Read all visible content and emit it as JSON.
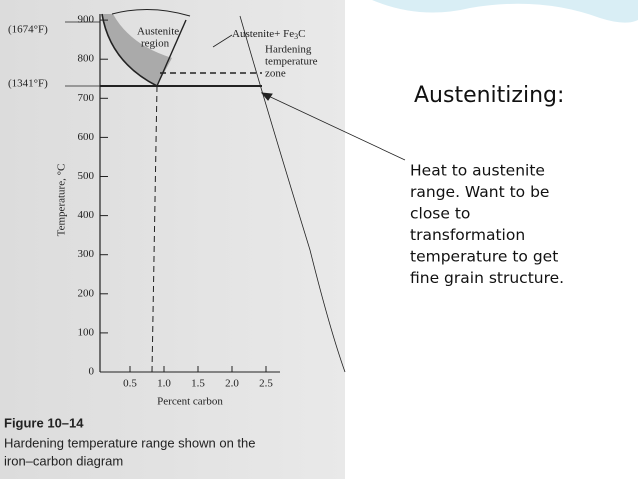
{
  "figure": {
    "annotations": {
      "f1674": "(1674°F)",
      "f1341": "(1341°F)",
      "austenite": "Austenite",
      "region": "region",
      "austenite_fe3c": "Austenite+ Fe",
      "fe3c_sub": "3",
      "fe3c_c": "C",
      "hardening": "Hardening",
      "temperature": "temperature",
      "zone": "zone"
    },
    "y_axis_label": "Temperature, °C",
    "y_ticks": [
      "0",
      "100",
      "200",
      "300",
      "400",
      "500",
      "600",
      "700",
      "800",
      "900"
    ],
    "x_ticks": [
      "0.5",
      "1.0",
      "1.5",
      "2.0",
      "2.5"
    ],
    "x_axis_label": "Percent carbon",
    "caption": {
      "title": "Figure 10–14",
      "lines": [
        "Hardening temperature range shown on the",
        "iron–carbon diagram"
      ]
    }
  },
  "slide": {
    "heading": "Austenitizing:",
    "body": [
      "Heat to austenite",
      "range.  Want to be",
      "close to",
      "transformation",
      "temperature to get",
      "fine grain structure."
    ]
  }
}
